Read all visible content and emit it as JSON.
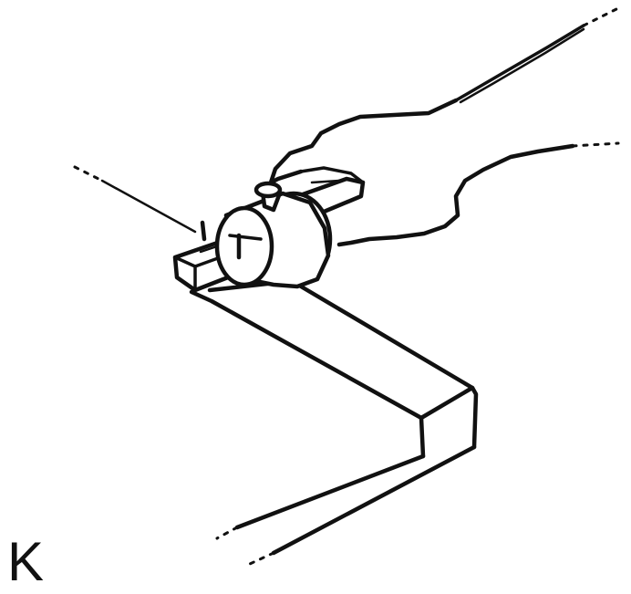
{
  "figure": {
    "label": "K"
  }
}
